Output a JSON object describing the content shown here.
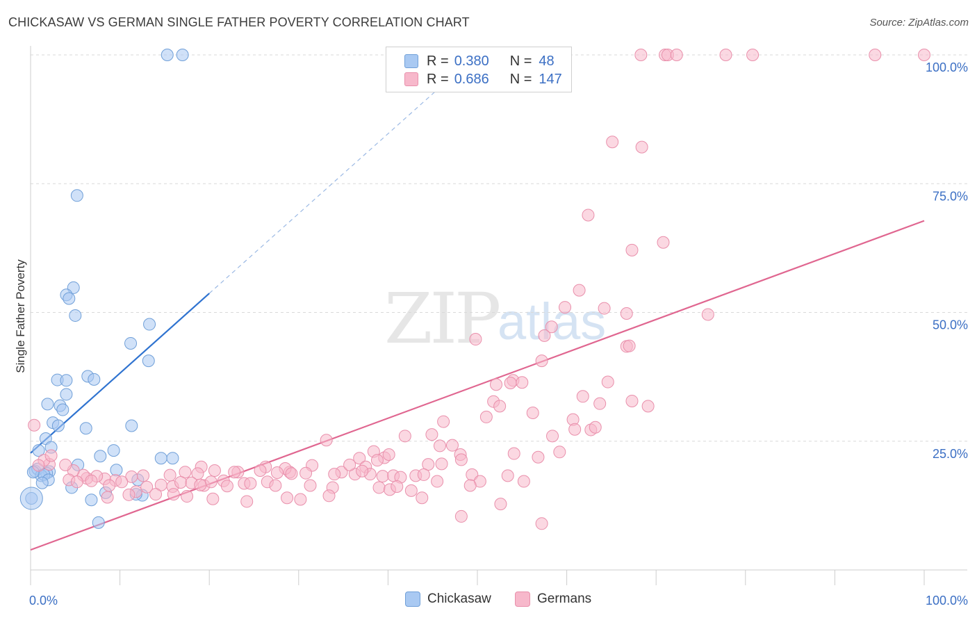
{
  "header": {
    "title": "CHICKASAW VS GERMAN SINGLE FATHER POVERTY CORRELATION CHART",
    "source": "Source: ZipAtlas.com"
  },
  "watermark": {
    "zip": "ZIP",
    "atlas": "atlas"
  },
  "legend": {
    "rows": [
      {
        "r_label": "R =",
        "r_value": "0.380",
        "n_label": "N =",
        "n_value": "48"
      },
      {
        "r_label": "R =",
        "r_value": "0.686",
        "n_label": "N =",
        "n_value": "147"
      }
    ]
  },
  "bottom_legend": {
    "chickasaw": "Chickasaw",
    "germans": "Germans"
  },
  "colors": {
    "chickasaw_fill": "#a9c9f2",
    "chickasaw_stroke": "#6f9fd8",
    "chickasaw_line": "#2f73d0",
    "germans_fill": "#f7b8cb",
    "germans_stroke": "#e98fab",
    "germans_line": "#e06690",
    "tick_label": "#3b6fc4",
    "grid": "#d9d9d9"
  },
  "chart_data": {
    "type": "scatter",
    "title": "CHICKASAW VS GERMAN SINGLE FATHER POVERTY CORRELATION CHART",
    "xlabel": "",
    "ylabel": "Single Father Poverty",
    "xlim": [
      0,
      100
    ],
    "ylim": [
      0,
      100
    ],
    "x_tick_labels": [
      "0.0%",
      "100.0%"
    ],
    "y_ticks": [
      25,
      50,
      75,
      100
    ],
    "y_tick_labels": [
      "25.0%",
      "50.0%",
      "75.0%",
      "100.0%"
    ],
    "grid": "horizontal dashed",
    "legend_position": "top-center",
    "series": [
      {
        "name": "Chickasaw",
        "R": 0.38,
        "N": 48,
        "trend": {
          "x0": 0,
          "y0": 22.7,
          "x1": 20,
          "y1": 53.7,
          "dashed_to_x": 46
        },
        "points": [
          [
            15.3,
            100
          ],
          [
            17.0,
            100
          ],
          [
            5.2,
            72.7
          ],
          [
            4.8,
            54.8
          ],
          [
            4.0,
            53.4
          ],
          [
            4.3,
            52.7
          ],
          [
            5.0,
            49.4
          ],
          [
            13.3,
            47.7
          ],
          [
            11.2,
            44.0
          ],
          [
            13.2,
            40.6
          ],
          [
            3.0,
            36.9
          ],
          [
            4.0,
            36.8
          ],
          [
            6.4,
            37.6
          ],
          [
            7.1,
            37.0
          ],
          [
            4.0,
            34.1
          ],
          [
            1.9,
            32.2
          ],
          [
            3.3,
            31.9
          ],
          [
            3.6,
            31.1
          ],
          [
            2.5,
            28.6
          ],
          [
            3.1,
            28.0
          ],
          [
            6.2,
            27.5
          ],
          [
            11.3,
            28.0
          ],
          [
            1.7,
            25.5
          ],
          [
            2.3,
            23.8
          ],
          [
            0.9,
            23.2
          ],
          [
            9.3,
            23.2
          ],
          [
            7.8,
            22.1
          ],
          [
            14.6,
            21.7
          ],
          [
            15.9,
            21.7
          ],
          [
            5.3,
            20.4
          ],
          [
            0.5,
            19.2
          ],
          [
            0.8,
            19.6
          ],
          [
            2.1,
            19.1
          ],
          [
            1.8,
            18.8
          ],
          [
            1.2,
            18.3
          ],
          [
            1.5,
            18.5
          ],
          [
            9.6,
            19.4
          ],
          [
            2.0,
            17.5
          ],
          [
            12.0,
            17.5
          ],
          [
            1.3,
            16.9
          ],
          [
            4.6,
            16.0
          ],
          [
            8.4,
            15.0
          ],
          [
            12.5,
            14.5
          ],
          [
            11.8,
            14.7
          ],
          [
            6.8,
            13.6
          ],
          [
            7.6,
            9.2
          ],
          [
            0.1,
            13.9
          ],
          [
            0.3,
            19.0
          ]
        ]
      },
      {
        "name": "Germans",
        "R": 0.686,
        "N": 147,
        "trend": {
          "x0": 0,
          "y0": 3.9,
          "x1": 100,
          "y1": 67.8
        },
        "points": [
          [
            68.3,
            100
          ],
          [
            71.0,
            100
          ],
          [
            71.3,
            100
          ],
          [
            72.3,
            100
          ],
          [
            77.8,
            100
          ],
          [
            80.8,
            100
          ],
          [
            94.5,
            100
          ],
          [
            100,
            100
          ],
          [
            65.1,
            83.1
          ],
          [
            68.4,
            82.1
          ],
          [
            62.4,
            68.9
          ],
          [
            67.3,
            62.1
          ],
          [
            70.8,
            63.6
          ],
          [
            61.4,
            54.3
          ],
          [
            64.2,
            50.8
          ],
          [
            59.8,
            51.0
          ],
          [
            75.8,
            49.6
          ],
          [
            66.7,
            49.8
          ],
          [
            58.3,
            47.2
          ],
          [
            49.8,
            44.8
          ],
          [
            57.5,
            45.5
          ],
          [
            66.7,
            43.4
          ],
          [
            67.0,
            43.5
          ],
          [
            57.2,
            40.6
          ],
          [
            54.0,
            36.8
          ],
          [
            52.1,
            36.0
          ],
          [
            53.7,
            36.3
          ],
          [
            55.0,
            36.4
          ],
          [
            64.6,
            36.5
          ],
          [
            61.8,
            33.7
          ],
          [
            51.8,
            32.7
          ],
          [
            52.5,
            31.8
          ],
          [
            67.3,
            32.8
          ],
          [
            69.1,
            31.8
          ],
          [
            56.2,
            30.5
          ],
          [
            63.7,
            32.3
          ],
          [
            51.0,
            29.7
          ],
          [
            46.2,
            28.8
          ],
          [
            60.7,
            29.2
          ],
          [
            60.9,
            27.3
          ],
          [
            62.7,
            27.2
          ],
          [
            63.2,
            27.7
          ],
          [
            58.4,
            26.0
          ],
          [
            41.9,
            26.0
          ],
          [
            44.9,
            26.3
          ],
          [
            45.8,
            24.1
          ],
          [
            47.2,
            24.2
          ],
          [
            48.1,
            22.4
          ],
          [
            33.1,
            25.2
          ],
          [
            38.4,
            23.0
          ],
          [
            39.6,
            21.8
          ],
          [
            46.0,
            20.6
          ],
          [
            44.5,
            20.5
          ],
          [
            48.2,
            21.4
          ],
          [
            54.1,
            22.6
          ],
          [
            59.2,
            22.9
          ],
          [
            56.8,
            21.9
          ],
          [
            36.8,
            21.7
          ],
          [
            37.5,
            20.0
          ],
          [
            38.8,
            21.3
          ],
          [
            31.5,
            20.3
          ],
          [
            30.8,
            18.8
          ],
          [
            29.0,
            19.0
          ],
          [
            28.5,
            19.7
          ],
          [
            26.3,
            20.0
          ],
          [
            25.7,
            19.3
          ],
          [
            23.2,
            19.0
          ],
          [
            22.8,
            19.0
          ],
          [
            20.6,
            19.3
          ],
          [
            19.1,
            20.0
          ],
          [
            17.3,
            19.0
          ],
          [
            18.7,
            18.7
          ],
          [
            15.6,
            18.4
          ],
          [
            12.6,
            18.3
          ],
          [
            11.3,
            18.1
          ],
          [
            9.5,
            17.4
          ],
          [
            8.3,
            17.7
          ],
          [
            7.4,
            18.2
          ],
          [
            6.3,
            17.8
          ],
          [
            5.9,
            18.4
          ],
          [
            4.8,
            19.3
          ],
          [
            3.9,
            20.4
          ],
          [
            2.1,
            20.5
          ],
          [
            1.5,
            21.3
          ],
          [
            0.9,
            20.3
          ],
          [
            0.4,
            28.1
          ],
          [
            2.3,
            22.2
          ],
          [
            4.3,
            17.5
          ],
          [
            5.2,
            17.1
          ],
          [
            6.8,
            17.3
          ],
          [
            8.8,
            16.4
          ],
          [
            10.2,
            17.1
          ],
          [
            11.8,
            15.2
          ],
          [
            13.0,
            16.1
          ],
          [
            14.6,
            16.5
          ],
          [
            15.9,
            16.2
          ],
          [
            16.8,
            17.0
          ],
          [
            18.0,
            16.9
          ],
          [
            19.4,
            16.4
          ],
          [
            20.2,
            17.1
          ],
          [
            21.6,
            17.3
          ],
          [
            23.9,
            16.8
          ],
          [
            24.6,
            16.8
          ],
          [
            26.5,
            17.1
          ],
          [
            27.6,
            18.9
          ],
          [
            29.2,
            18.7
          ],
          [
            31.3,
            16.4
          ],
          [
            33.8,
            16.0
          ],
          [
            34.8,
            19.0
          ],
          [
            36.3,
            18.6
          ],
          [
            38.0,
            18.6
          ],
          [
            39.4,
            18.2
          ],
          [
            40.6,
            18.3
          ],
          [
            41.4,
            18.0
          ],
          [
            43.1,
            18.3
          ],
          [
            44.0,
            18.5
          ],
          [
            39.0,
            16.0
          ],
          [
            40.2,
            15.6
          ],
          [
            33.4,
            14.4
          ],
          [
            30.2,
            13.7
          ],
          [
            24.2,
            13.3
          ],
          [
            20.4,
            13.8
          ],
          [
            17.5,
            14.3
          ],
          [
            14.0,
            14.7
          ],
          [
            11.0,
            14.6
          ],
          [
            8.6,
            14.1
          ],
          [
            40.1,
            22.4
          ],
          [
            37.1,
            19.2
          ],
          [
            34.0,
            18.6
          ],
          [
            35.7,
            20.4
          ],
          [
            45.5,
            17.2
          ],
          [
            49.4,
            18.5
          ],
          [
            50.3,
            17.2
          ],
          [
            49.2,
            16.4
          ],
          [
            52.6,
            12.8
          ],
          [
            48.2,
            10.4
          ],
          [
            53.4,
            18.3
          ],
          [
            55.2,
            17.2
          ],
          [
            41.0,
            16.2
          ],
          [
            42.6,
            15.4
          ],
          [
            43.8,
            14.0
          ],
          [
            27.4,
            16.4
          ],
          [
            28.7,
            14.0
          ],
          [
            22.0,
            16.3
          ],
          [
            19.0,
            16.5
          ],
          [
            16.0,
            14.7
          ],
          [
            57.2,
            9.0
          ]
        ]
      }
    ]
  }
}
